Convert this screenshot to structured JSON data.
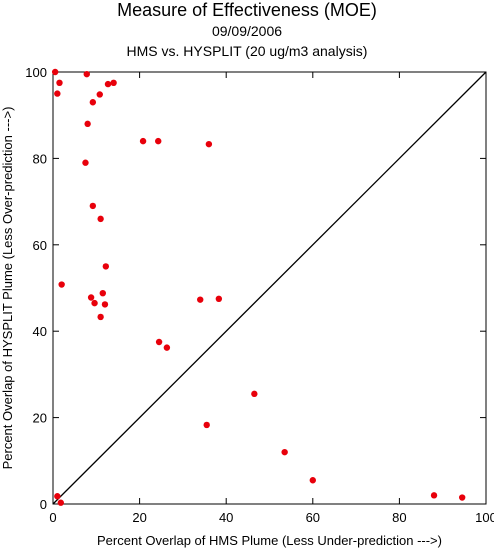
{
  "chart_data": {
    "type": "scatter",
    "title": "Measure of Effectiveness (MOE)",
    "subtitle": "09/09/2006",
    "subtitle2": "HMS vs. HYSPLIT  (20 ug/m3 analysis)",
    "xlabel": "Percent Overlap of HMS Plume (Less Under-prediction --->)",
    "ylabel": "Percent Overlap of HYSPLIT Plume (Less Over-prediction --->)",
    "xlim": [
      0,
      100
    ],
    "ylim": [
      0,
      100
    ],
    "xticks": [
      "0",
      "20",
      "40",
      "60",
      "80",
      "100"
    ],
    "yticks": [
      "0",
      "20",
      "40",
      "60",
      "80",
      "100"
    ],
    "diagonal": true,
    "marker_color": "#e8000b",
    "points": [
      {
        "x": 0.5,
        "y": 100
      },
      {
        "x": 1.5,
        "y": 97.5
      },
      {
        "x": 1.0,
        "y": 95
      },
      {
        "x": 7.8,
        "y": 99.5
      },
      {
        "x": 8.0,
        "y": 88
      },
      {
        "x": 9.2,
        "y": 93
      },
      {
        "x": 10.8,
        "y": 94.8
      },
      {
        "x": 12.7,
        "y": 97.2
      },
      {
        "x": 14.0,
        "y": 97.5
      },
      {
        "x": 20.8,
        "y": 84
      },
      {
        "x": 24.3,
        "y": 84
      },
      {
        "x": 36.0,
        "y": 83.3
      },
      {
        "x": 7.5,
        "y": 79
      },
      {
        "x": 9.2,
        "y": 69
      },
      {
        "x": 11.0,
        "y": 66
      },
      {
        "x": 12.2,
        "y": 55
      },
      {
        "x": 2.0,
        "y": 50.8
      },
      {
        "x": 8.8,
        "y": 47.8
      },
      {
        "x": 9.6,
        "y": 46.5
      },
      {
        "x": 11.5,
        "y": 48.8
      },
      {
        "x": 12.0,
        "y": 46.2
      },
      {
        "x": 11.0,
        "y": 43.3
      },
      {
        "x": 34.0,
        "y": 47.3
      },
      {
        "x": 38.3,
        "y": 47.5
      },
      {
        "x": 24.5,
        "y": 37.5
      },
      {
        "x": 26.3,
        "y": 36.2
      },
      {
        "x": 46.5,
        "y": 25.5
      },
      {
        "x": 35.5,
        "y": 18.3
      },
      {
        "x": 53.5,
        "y": 12
      },
      {
        "x": 60.0,
        "y": 5.5
      },
      {
        "x": 88.0,
        "y": 2
      },
      {
        "x": 94.5,
        "y": 1.5
      },
      {
        "x": 1.0,
        "y": 1.8
      },
      {
        "x": 1.8,
        "y": 0.3
      }
    ]
  }
}
